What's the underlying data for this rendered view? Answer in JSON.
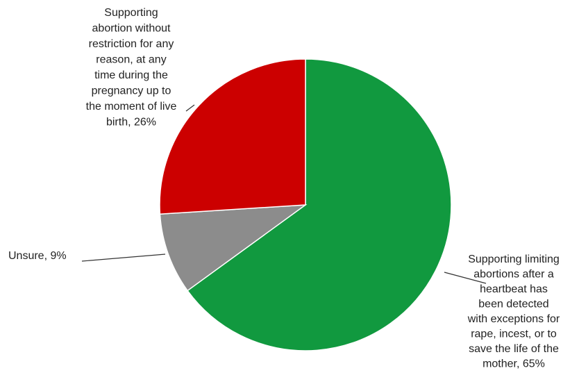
{
  "chart_data": {
    "type": "pie",
    "title": "",
    "slices": [
      {
        "key": "limit",
        "label_lines": [
          "Supporting limiting",
          "abortions after a",
          "heartbeat has",
          "been detected",
          "with exceptions for",
          "rape, incest, or to",
          "save the life of the",
          "mother, 65%"
        ],
        "value": 65,
        "color": "#11993f"
      },
      {
        "key": "unsure",
        "label_lines": [
          "Unsure, 9%"
        ],
        "value": 9,
        "color": "#8c8c8c"
      },
      {
        "key": "unrestricted",
        "label_lines": [
          "Supporting",
          "abortion without",
          "restriction for any",
          "reason, at any",
          "time during the",
          "pregnancy up to",
          "the moment of live",
          "birth, 26%"
        ],
        "value": 26,
        "color": "#cc0000"
      }
    ]
  }
}
